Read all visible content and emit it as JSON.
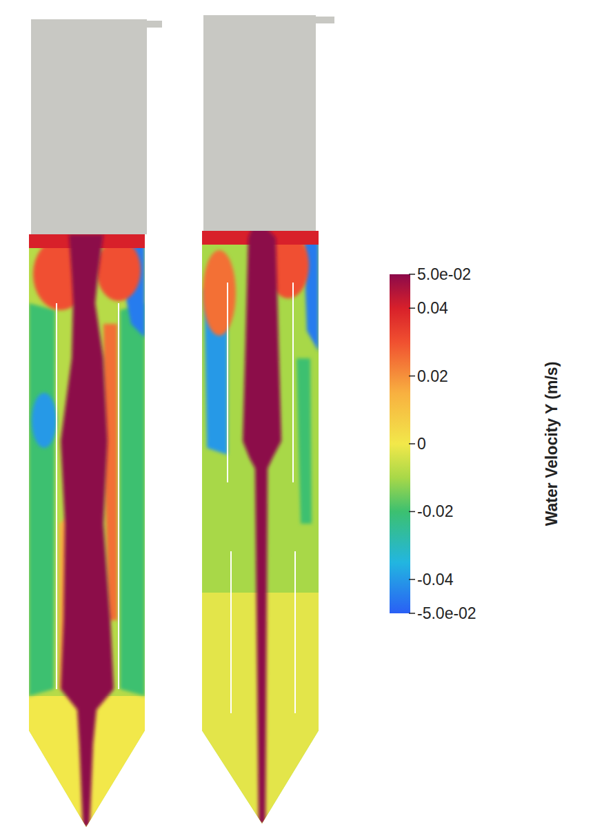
{
  "chart_data": {
    "type": "contour",
    "colorbar": {
      "title": "Water Velocity Y (m/s)",
      "range": [
        -0.05,
        0.05
      ],
      "ticks": [
        {
          "value": 0.05,
          "label": "5.0e-02"
        },
        0.04,
        0.02,
        0,
        -0.02,
        -0.04,
        {
          "value": -0.05,
          "label": "-5.0e-02"
        }
      ]
    },
    "panels": [
      {
        "field_values": [
          -0.008,
          0.0,
          -0.02,
          -0.02,
          -0.045,
          -0.04,
          0.025,
          0.015,
          0.03,
          0.03,
          0.04,
          0.05
        ]
      },
      {
        "field_values": [
          -0.01,
          -0.002,
          -0.04,
          -0.045,
          0.025,
          0.03,
          0.04,
          -0.02,
          0.05
        ]
      }
    ]
  }
}
